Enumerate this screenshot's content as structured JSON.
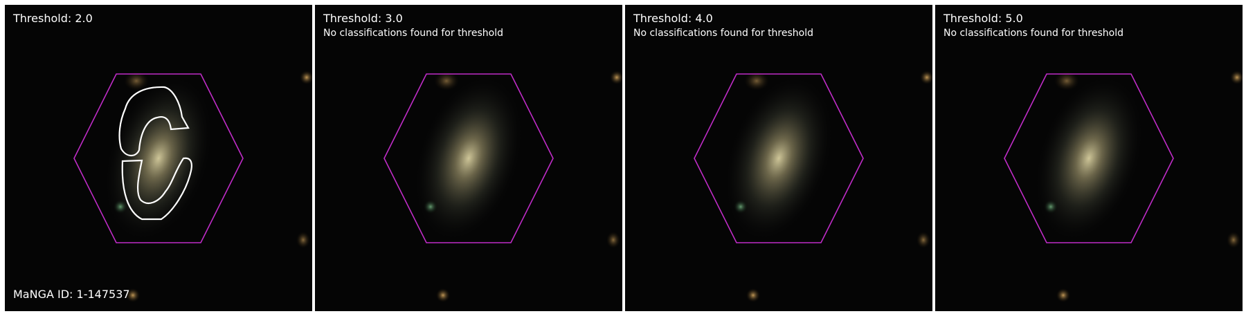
{
  "panels": [
    {
      "title": "Threshold: 2.0",
      "subtitle": "",
      "has_contour": true,
      "footer": "MaNGA ID: 1-147537"
    },
    {
      "title": "Threshold: 3.0",
      "subtitle": "No classifications found for threshold",
      "has_contour": false,
      "footer": ""
    },
    {
      "title": "Threshold: 4.0",
      "subtitle": "No classifications found for threshold",
      "has_contour": false,
      "footer": ""
    },
    {
      "title": "Threshold: 5.0",
      "subtitle": "No classifications found for threshold",
      "has_contour": false,
      "footer": ""
    }
  ],
  "colors": {
    "hexagon": "#c02cc8",
    "contour": "#ffffff",
    "background": "#050505"
  }
}
